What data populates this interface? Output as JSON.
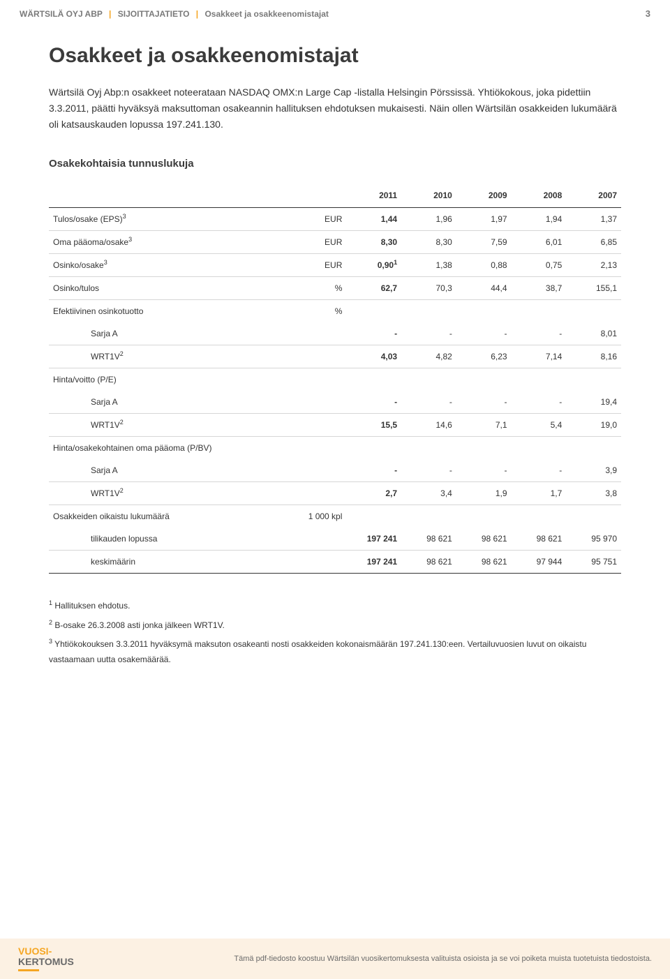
{
  "header": {
    "crumb1": "WÄRTSILÄ OYJ ABP",
    "crumb2": "SIJOITTAJATIETO",
    "crumb3": "Osakkeet ja osakkeenomistajat",
    "page_number": "3"
  },
  "title": "Osakkeet ja osakkeenomistajat",
  "intro": "Wärtsilä Oyj Abp:n osakkeet noteerataan NASDAQ OMX:n Large Cap -listalla Helsingin Pörssissä. Yhtiökokous, joka pidettiin 3.3.2011, päätti hyväksyä maksuttoman osakeannin hallituksen ehdotuksen mukaisesti. Näin ollen Wärtsilän osakkeiden lukumäärä oli katsauskauden lopussa 197.241.130.",
  "subtitle": "Osakekohtaisia tunnuslukuja",
  "table": {
    "columns": [
      "",
      "",
      "2011",
      "2010",
      "2009",
      "2008",
      "2007"
    ],
    "rows": [
      {
        "label": "Tulos/osake (EPS)",
        "sup": "3",
        "unit": "EUR",
        "vals": [
          "1,44",
          "1,96",
          "1,97",
          "1,94",
          "1,37"
        ],
        "indent": 0
      },
      {
        "label": "Oma pääoma/osake",
        "sup": "3",
        "unit": "EUR",
        "vals": [
          "8,30",
          "8,30",
          "7,59",
          "6,01",
          "6,85"
        ],
        "indent": 0
      },
      {
        "label": "Osinko/osake",
        "sup": "3",
        "unit": "EUR",
        "val_sup": "1",
        "vals": [
          "0,90",
          "1,38",
          "0,88",
          "0,75",
          "2,13"
        ],
        "indent": 0
      },
      {
        "label": "Osinko/tulos",
        "unit": "%",
        "vals": [
          "62,7",
          "70,3",
          "44,4",
          "38,7",
          "155,1"
        ],
        "indent": 0
      },
      {
        "label": "Efektiivinen osinkotuotto",
        "unit": "%",
        "vals": [
          "",
          "",
          "",
          "",
          ""
        ],
        "indent": 0,
        "noborder": true
      },
      {
        "label": "Sarja A",
        "unit": "",
        "vals": [
          "-",
          "-",
          "-",
          "-",
          "8,01"
        ],
        "indent": 1
      },
      {
        "label": "WRT1V",
        "sup": "2",
        "unit": "",
        "vals": [
          "4,03",
          "4,82",
          "6,23",
          "7,14",
          "8,16"
        ],
        "indent": 1
      },
      {
        "label": "Hinta/voitto (P/E)",
        "unit": "",
        "vals": [
          "",
          "",
          "",
          "",
          ""
        ],
        "indent": 0,
        "noborder": true
      },
      {
        "label": "Sarja A",
        "unit": "",
        "vals": [
          "-",
          "-",
          "-",
          "-",
          "19,4"
        ],
        "indent": 1
      },
      {
        "label": "WRT1V",
        "sup": "2",
        "unit": "",
        "vals": [
          "15,5",
          "14,6",
          "7,1",
          "5,4",
          "19,0"
        ],
        "indent": 1
      },
      {
        "label": "Hinta/osakekohtainen oma pääoma (P/BV)",
        "unit": "",
        "vals": [
          "",
          "",
          "",
          "",
          ""
        ],
        "indent": 0,
        "noborder": true
      },
      {
        "label": "Sarja A",
        "unit": "",
        "vals": [
          "-",
          "-",
          "-",
          "-",
          "3,9"
        ],
        "indent": 1
      },
      {
        "label": "WRT1V",
        "sup": "2",
        "unit": "",
        "vals": [
          "2,7",
          "3,4",
          "1,9",
          "1,7",
          "3,8"
        ],
        "indent": 1
      },
      {
        "label": "Osakkeiden oikaistu lukumäärä",
        "unit": "1 000 kpl",
        "vals": [
          "",
          "",
          "",
          "",
          ""
        ],
        "indent": 0,
        "noborder": true
      },
      {
        "label": "tilikauden lopussa",
        "unit": "",
        "vals": [
          "197 241",
          "98 621",
          "98 621",
          "98 621",
          "95 970"
        ],
        "indent": 1
      },
      {
        "label": "keskimäärin",
        "unit": "",
        "vals": [
          "197 241",
          "98 621",
          "98 621",
          "97 944",
          "95 751"
        ],
        "indent": 1,
        "last": true
      }
    ]
  },
  "footnotes": {
    "n1_sup": "1",
    "n1": " Hallituksen ehdotus.",
    "n2_sup": "2",
    "n2": " B-osake 26.3.2008 asti jonka jälkeen WRT1V.",
    "n3_sup": "3",
    "n3": " Yhtiökokouksen 3.3.2011 hyväksymä maksuton osakeanti nosti osakkeiden kokonaismäärän 197.241.130:een. Vertailuvuosien luvut on oikaistu vastaamaan uutta osakemäärää."
  },
  "footer": {
    "logo_line1": "VUOSI-",
    "logo_line2": "KERTOMUS",
    "note": "Tämä pdf-tiedosto koostuu Wärtsilän vuosikertomuksesta valituista osioista ja se voi poiketa muista tuotetuista tiedostoista."
  }
}
